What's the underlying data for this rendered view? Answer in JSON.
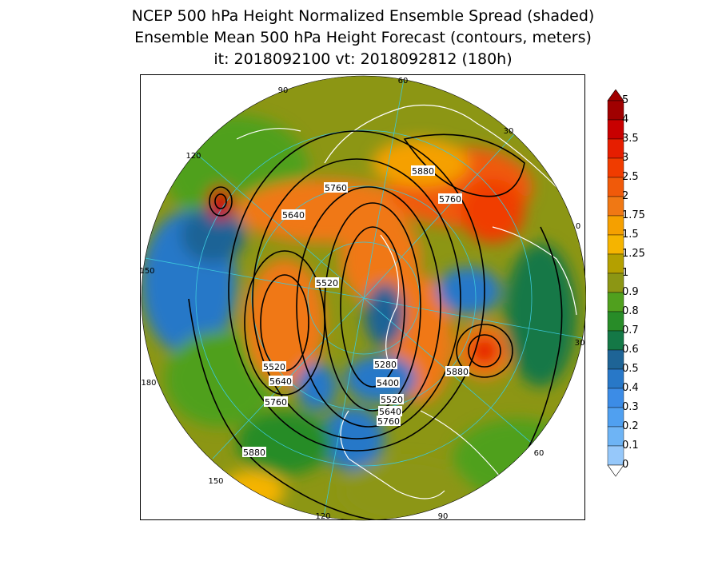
{
  "header": {
    "title1": "NCEP 500 hPa Height Normalized Ensemble Spread (shaded)",
    "title2": "Ensemble Mean 500 hPa Height Forecast (contours, meters)",
    "title3": "it: 2018092100      vt: 2018092812 (180h)"
  },
  "colorbar": {
    "levels": [
      {
        "label": "5",
        "color": "#a00000"
      },
      {
        "label": "4",
        "color": "#c80000"
      },
      {
        "label": "3.5",
        "color": "#e61e00"
      },
      {
        "label": "3",
        "color": "#f03c00"
      },
      {
        "label": "2.5",
        "color": "#f05a0a"
      },
      {
        "label": "2",
        "color": "#f07814"
      },
      {
        "label": "1.75",
        "color": "#f5a000"
      },
      {
        "label": "1.5",
        "color": "#f5b400"
      },
      {
        "label": "1.25",
        "color": "#b4a000"
      },
      {
        "label": "1",
        "color": "#8c9614"
      },
      {
        "label": "0.9",
        "color": "#50a01e"
      },
      {
        "label": "0.8",
        "color": "#288c28"
      },
      {
        "label": "0.7",
        "color": "#147846"
      },
      {
        "label": "0.6",
        "color": "#1e6496"
      },
      {
        "label": "0.5",
        "color": "#2878c8"
      },
      {
        "label": "0.4",
        "color": "#3c8ce6"
      },
      {
        "label": "0.3",
        "color": "#50a0f0"
      },
      {
        "label": "0.2",
        "color": "#6eb4f5"
      },
      {
        "label": "0.1",
        "color": "#96c8fa"
      },
      {
        "label": "0",
        "color": "#c8e6ff"
      }
    ]
  },
  "map": {
    "contour_labels": [
      {
        "text": "5880",
        "id": "c5880a"
      },
      {
        "text": "5760",
        "id": "c5760a"
      },
      {
        "text": "5760",
        "id": "c5760b"
      },
      {
        "text": "5640",
        "id": "c5640a"
      },
      {
        "text": "5520",
        "id": "c5520a"
      },
      {
        "text": "5520",
        "id": "c5520b"
      },
      {
        "text": "5640",
        "id": "c5640b"
      },
      {
        "text": "5760",
        "id": "c5760c"
      },
      {
        "text": "5280",
        "id": "c5280"
      },
      {
        "text": "5400",
        "id": "c5400"
      },
      {
        "text": "5520",
        "id": "c5520c"
      },
      {
        "text": "5640",
        "id": "c5640c"
      },
      {
        "text": "5760",
        "id": "c5760d"
      },
      {
        "text": "5880",
        "id": "c5880b"
      },
      {
        "text": "5880",
        "id": "c5880c"
      }
    ],
    "longitude_labels": [
      "60",
      "90",
      "120",
      "150",
      "180",
      "150",
      "120",
      "90",
      "60",
      "30",
      "0",
      "30"
    ]
  }
}
